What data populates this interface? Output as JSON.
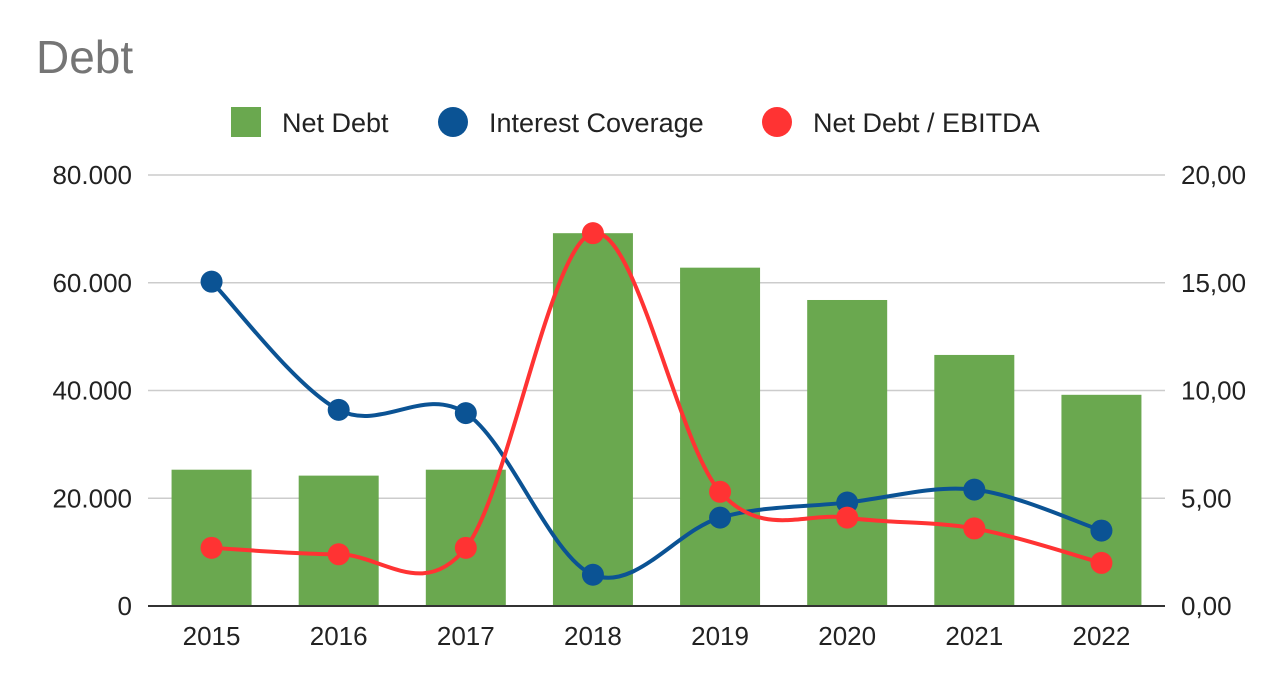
{
  "chart_data": {
    "type": "bar",
    "title": "Debt",
    "categories": [
      "2015",
      "2016",
      "2017",
      "2018",
      "2019",
      "2020",
      "2021",
      "2022"
    ],
    "series": [
      {
        "name": "Net Debt",
        "type": "bar",
        "axis": "left",
        "color": "#6aa84f",
        "values": [
          25300,
          24200,
          25300,
          69200,
          62800,
          56800,
          46600,
          39200
        ]
      },
      {
        "name": "Interest Coverage",
        "type": "line",
        "axis": "right",
        "color": "#0b5394",
        "values": [
          15.05,
          9.1,
          8.95,
          1.45,
          4.1,
          4.8,
          5.4,
          3.5
        ]
      },
      {
        "name": "Net Debt / EBITDA",
        "type": "line",
        "axis": "right",
        "color": "#ff3333",
        "values": [
          2.7,
          2.4,
          2.7,
          17.3,
          5.3,
          4.1,
          3.6,
          2.0
        ]
      }
    ],
    "y_left": {
      "lim": [
        0,
        80000
      ],
      "ticks": [
        "0",
        "20.000",
        "40.000",
        "60.000",
        "80.000"
      ]
    },
    "y_right": {
      "lim": [
        0,
        20
      ],
      "ticks": [
        "0,00",
        "5,00",
        "10,00",
        "15,00",
        "20,00"
      ]
    },
    "legend_position": "top",
    "grid": true
  }
}
